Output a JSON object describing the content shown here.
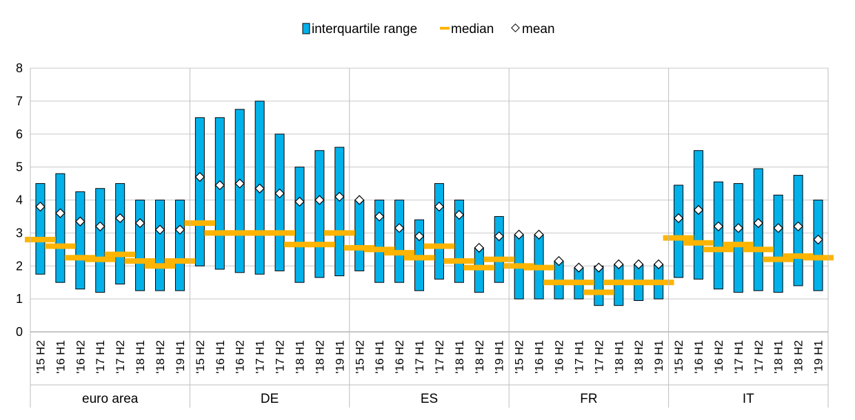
{
  "chart_data": {
    "type": "bar",
    "title": "",
    "xlabel": "",
    "ylabel": "",
    "ylim": [
      0,
      8
    ],
    "yticks": [
      0,
      1,
      2,
      3,
      4,
      5,
      6,
      7,
      8
    ],
    "grid": true,
    "legend_position": "top-center",
    "legend": [
      {
        "key": "iqr",
        "label": "interquartile range"
      },
      {
        "key": "median",
        "label": "median"
      },
      {
        "key": "mean",
        "label": "mean"
      }
    ],
    "colors": {
      "iqr": "#00B1EA",
      "median": "#FFB400",
      "mean": "#ffffff",
      "outline": "#000000",
      "grid": "#c8c8c8"
    },
    "period_labels": [
      "'15 H2",
      "'16 H1",
      "'16 H2",
      "'17 H1",
      "'17 H2",
      "'18 H1",
      "'18 H2",
      "'19 H1"
    ],
    "groups": [
      {
        "name": "euro area",
        "q1": [
          1.75,
          1.5,
          1.3,
          1.2,
          1.45,
          1.25,
          1.25,
          1.25
        ],
        "q3": [
          4.5,
          4.8,
          4.25,
          4.35,
          4.5,
          4.0,
          4.0,
          4.0
        ],
        "median": [
          2.8,
          2.6,
          2.25,
          2.2,
          2.35,
          2.15,
          2.0,
          2.15
        ],
        "mean": [
          3.8,
          3.6,
          3.35,
          3.2,
          3.45,
          3.3,
          3.1,
          3.1
        ]
      },
      {
        "name": "DE",
        "q1": [
          2.0,
          1.9,
          1.8,
          1.75,
          1.85,
          1.5,
          1.65,
          1.7
        ],
        "q3": [
          6.5,
          6.5,
          6.75,
          7.0,
          6.0,
          5.0,
          5.5,
          5.6
        ],
        "median": [
          3.3,
          3.0,
          3.0,
          3.0,
          3.0,
          2.65,
          2.65,
          3.0
        ],
        "mean": [
          4.7,
          4.45,
          4.5,
          4.35,
          4.2,
          3.95,
          4.0,
          4.1
        ]
      },
      {
        "name": "ES",
        "q1": [
          1.85,
          1.5,
          1.5,
          1.25,
          1.6,
          1.5,
          1.2,
          1.5
        ],
        "q3": [
          4.0,
          4.0,
          4.0,
          3.4,
          4.5,
          4.0,
          2.55,
          3.5
        ],
        "median": [
          2.55,
          2.5,
          2.4,
          2.25,
          2.6,
          2.15,
          1.95,
          2.2
        ],
        "mean": [
          4.0,
          3.5,
          3.15,
          2.9,
          3.8,
          3.55,
          2.55,
          2.9
        ]
      },
      {
        "name": "FR",
        "q1": [
          1.0,
          1.0,
          1.0,
          1.0,
          0.8,
          0.8,
          0.95,
          1.0
        ],
        "q3": [
          2.95,
          2.95,
          2.15,
          1.95,
          2.0,
          2.05,
          2.05,
          2.05
        ],
        "median": [
          2.0,
          1.95,
          1.5,
          1.5,
          1.2,
          1.5,
          1.5,
          1.5
        ],
        "mean": [
          2.95,
          2.95,
          2.15,
          1.95,
          1.95,
          2.05,
          2.05,
          2.05
        ]
      },
      {
        "name": "IT",
        "q1": [
          1.65,
          1.6,
          1.3,
          1.2,
          1.25,
          1.2,
          1.4,
          1.25
        ],
        "q3": [
          4.45,
          5.5,
          4.55,
          4.5,
          4.95,
          4.15,
          4.75,
          4.0
        ],
        "median": [
          2.85,
          2.7,
          2.5,
          2.65,
          2.5,
          2.2,
          2.3,
          2.25
        ],
        "mean": [
          3.45,
          3.7,
          3.2,
          3.15,
          3.3,
          3.15,
          3.2,
          2.8
        ]
      }
    ]
  }
}
